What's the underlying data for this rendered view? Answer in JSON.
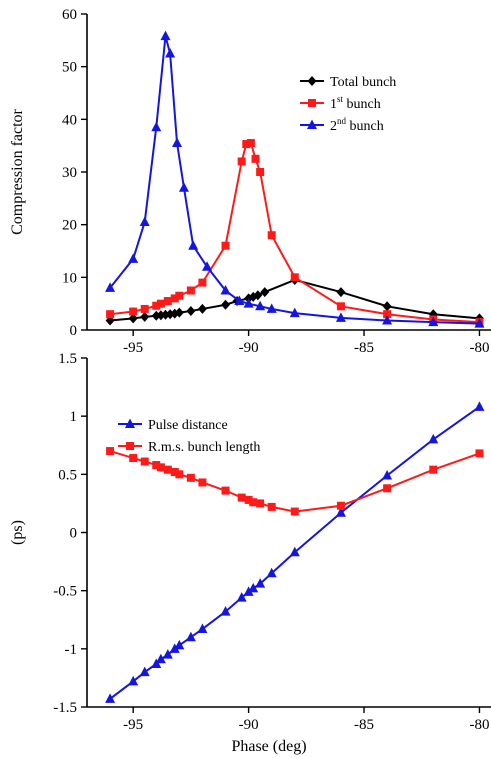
{
  "colors": {
    "total": "#000000",
    "first": "#ff1a1a",
    "second": "#1515e0"
  },
  "chart_data": [
    {
      "type": "line",
      "title": "",
      "xlabel": "",
      "ylabel": "Compression factor",
      "xlim": [
        -97,
        -79.5
      ],
      "ylim": [
        0,
        60
      ],
      "xticks": [
        -95,
        -90,
        -85,
        -80
      ],
      "xtick_labels": [
        "-95",
        "-90",
        "-85",
        "-80"
      ],
      "yticks": [
        0,
        10,
        20,
        30,
        40,
        50,
        60
      ],
      "ytick_labels": [
        "0",
        "10",
        "20",
        "30",
        "40",
        "50",
        "60"
      ],
      "grid": false,
      "legend_position": "top-right",
      "series": [
        {
          "name": "Total bunch",
          "legend_main": "Total bunch",
          "legend_sup": "",
          "legend_tail": "",
          "marker": "diamond",
          "color": "#000000",
          "x": [
            -96,
            -95,
            -94.5,
            -94,
            -93.8,
            -93.6,
            -93.4,
            -93.2,
            -93,
            -92.5,
            -92,
            -91,
            -90.5,
            -90,
            -89.8,
            -89.6,
            -89.3,
            -88,
            -86,
            -84,
            -82,
            -80
          ],
          "y": [
            1.8,
            2.2,
            2.5,
            2.7,
            2.8,
            2.9,
            3.0,
            3.1,
            3.3,
            3.6,
            4.0,
            4.8,
            5.5,
            6.0,
            6.3,
            6.6,
            7.2,
            9.5,
            7.2,
            4.5,
            3.0,
            2.2
          ]
        },
        {
          "name": "1st bunch",
          "legend_main": "1",
          "legend_sup": "st",
          "legend_tail": " bunch",
          "marker": "square",
          "color": "#ff1a1a",
          "x": [
            -96,
            -95,
            -94.5,
            -94,
            -93.8,
            -93.5,
            -93.2,
            -93,
            -92.5,
            -92,
            -91,
            -90.3,
            -90.1,
            -89.9,
            -89.7,
            -89.5,
            -89,
            -88,
            -86,
            -84,
            -82,
            -80
          ],
          "y": [
            3.0,
            3.5,
            4.0,
            4.6,
            5.0,
            5.5,
            6.0,
            6.5,
            7.5,
            9.0,
            16.0,
            32.0,
            35.3,
            35.5,
            32.5,
            30.0,
            18.0,
            10.0,
            4.5,
            3.0,
            2.0,
            1.5
          ]
        },
        {
          "name": "2nd bunch",
          "legend_main": "2",
          "legend_sup": "nd",
          "legend_tail": " bunch",
          "marker": "triangle",
          "color": "#1515e0",
          "x": [
            -96,
            -95,
            -94.5,
            -94,
            -93.6,
            -93.4,
            -93.1,
            -92.8,
            -92.4,
            -91.8,
            -91,
            -90.4,
            -90,
            -89.5,
            -89,
            -88,
            -86,
            -84,
            -82,
            -80
          ],
          "y": [
            8.0,
            13.5,
            20.5,
            38.5,
            55.8,
            52.5,
            35.5,
            27.0,
            16.0,
            12.0,
            7.5,
            5.5,
            5.0,
            4.5,
            4.0,
            3.2,
            2.3,
            1.8,
            1.5,
            1.2
          ]
        }
      ]
    },
    {
      "type": "line",
      "title": "",
      "xlabel": "Phase (deg)",
      "ylabel": "(ps)",
      "xlim": [
        -97,
        -79.5
      ],
      "ylim": [
        -1.5,
        1.5
      ],
      "xticks": [
        -95,
        -90,
        -85,
        -80
      ],
      "xtick_labels": [
        "-95",
        "-90",
        "-85",
        "-80"
      ],
      "yticks": [
        -1.5,
        -1,
        -0.5,
        0,
        0.5,
        1,
        1.5
      ],
      "ytick_labels": [
        "-1.5",
        "-1",
        "-0.5",
        "0",
        "0.5",
        "1",
        "1.5"
      ],
      "grid": false,
      "legend_position": "top-left",
      "series": [
        {
          "name": "Pulse distance",
          "legend_main": "Pulse distance",
          "legend_sup": "",
          "legend_tail": "",
          "marker": "triangle",
          "color": "#1515e0",
          "x": [
            -96,
            -95,
            -94.5,
            -94,
            -93.8,
            -93.5,
            -93.2,
            -93,
            -92.5,
            -92,
            -91,
            -90.3,
            -90,
            -89.8,
            -89.5,
            -89,
            -88,
            -86,
            -84,
            -82,
            -80
          ],
          "y": [
            -1.43,
            -1.28,
            -1.2,
            -1.13,
            -1.09,
            -1.05,
            -1.0,
            -0.97,
            -0.9,
            -0.83,
            -0.68,
            -0.56,
            -0.51,
            -0.48,
            -0.44,
            -0.35,
            -0.17,
            0.17,
            0.49,
            0.8,
            1.08
          ]
        },
        {
          "name": "R.m.s. bunch length",
          "legend_main": "R.m.s. bunch length",
          "legend_sup": "",
          "legend_tail": "",
          "marker": "square",
          "color": "#ff1a1a",
          "x": [
            -96,
            -95,
            -94.5,
            -94,
            -93.8,
            -93.5,
            -93.2,
            -93,
            -92.5,
            -92,
            -91,
            -90.3,
            -90,
            -89.8,
            -89.5,
            -89,
            -88,
            -86,
            -84,
            -82,
            -80
          ],
          "y": [
            0.7,
            0.64,
            0.61,
            0.58,
            0.56,
            0.54,
            0.52,
            0.5,
            0.47,
            0.43,
            0.36,
            0.3,
            0.28,
            0.26,
            0.25,
            0.22,
            0.18,
            0.23,
            0.38,
            0.54,
            0.68
          ]
        }
      ]
    }
  ]
}
